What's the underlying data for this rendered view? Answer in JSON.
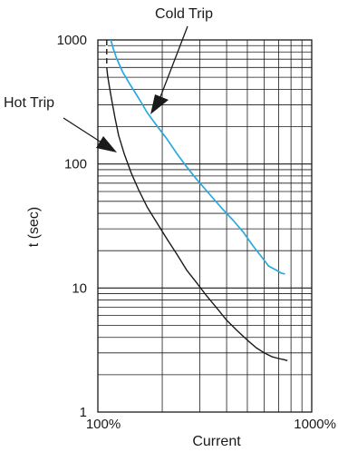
{
  "chart_data": {
    "type": "line",
    "xscale": "log",
    "yscale": "log",
    "xlabel": "Current",
    "ylabel": "t (sec)",
    "xlim": [
      100,
      1000
    ],
    "ylim": [
      1,
      1000
    ],
    "x_ticks": [
      {
        "value": 100,
        "label": "100%"
      },
      {
        "value": 1000,
        "label": "1000%"
      }
    ],
    "y_ticks": [
      {
        "value": 1000,
        "label": "1000"
      },
      {
        "value": 100,
        "label": "100"
      },
      {
        "value": 10,
        "label": "10"
      },
      {
        "value": 1,
        "label": "1"
      }
    ],
    "grid": true,
    "series": [
      {
        "name": "Cold Trip",
        "color": "#29a8df",
        "x": [
          115,
          118,
          122,
          130,
          140,
          155,
          170,
          190,
          210,
          235,
          260,
          290,
          330,
          380,
          430,
          480,
          530,
          580,
          630,
          680,
          720,
          750
        ],
        "y": [
          1000,
          850,
          720,
          560,
          450,
          340,
          260,
          200,
          160,
          120,
          95,
          75,
          58,
          44,
          35,
          28,
          22,
          18,
          15,
          14,
          13.2,
          13
        ]
      },
      {
        "name": "Hot Trip",
        "color": "#1a1a1a",
        "x": [
          110,
          110,
          111,
          113,
          116,
          120,
          125,
          133,
          143,
          155,
          170,
          190,
          210,
          235,
          260,
          290,
          320,
          360,
          400,
          450,
          500,
          550,
          600,
          650,
          700,
          740,
          770
        ],
        "y": [
          1000,
          600,
          520,
          430,
          330,
          240,
          170,
          120,
          85,
          62,
          45,
          33,
          25,
          18.5,
          14,
          11,
          8.8,
          6.9,
          5.5,
          4.5,
          3.8,
          3.3,
          3.0,
          2.8,
          2.7,
          2.65,
          2.6
        ]
      }
    ],
    "annotations": [
      {
        "text": "Cold Trip",
        "series": "Cold Trip"
      },
      {
        "text": "Hot Trip",
        "series": "Hot Trip"
      }
    ]
  }
}
